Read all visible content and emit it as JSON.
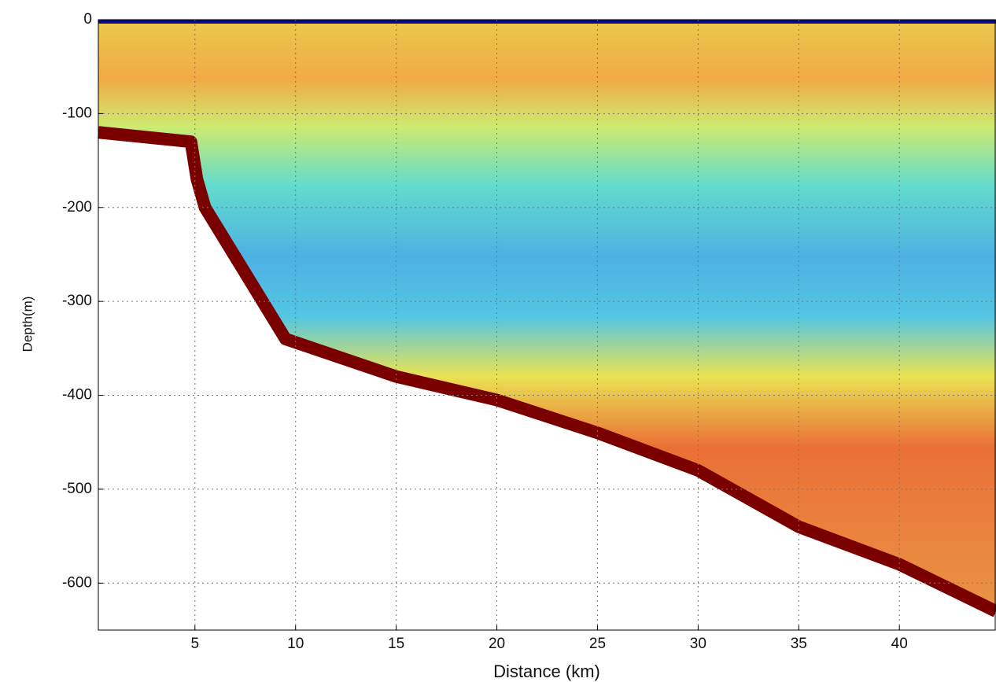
{
  "chart_data": {
    "type": "echogram",
    "xlabel": "Distance (km)",
    "ylabel": "Depth(m)",
    "x": [
      0.2,
      4.8,
      5.1,
      5.5,
      9.5,
      15,
      20,
      25,
      30,
      35,
      40,
      44.8
    ],
    "values": [
      -120,
      -130,
      -170,
      -200,
      -340,
      -380,
      -405,
      -440,
      -480,
      -540,
      -580,
      -630
    ],
    "color": "#7a0000",
    "xlim": [
      0.2,
      44.8
    ],
    "xticks": [
      5,
      10,
      15,
      20,
      25,
      30,
      35,
      40
    ],
    "ylim": [
      -650,
      0
    ],
    "yticks": [
      0,
      -100,
      -200,
      -300,
      -400,
      -500,
      -600
    ],
    "grid": true
  }
}
